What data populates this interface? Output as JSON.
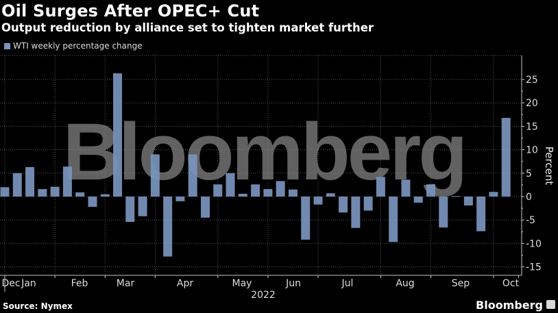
{
  "header": {
    "title": "Oil Surges After OPEC+ Cut",
    "subtitle": "Output reduction by alliance set to tighten market further"
  },
  "legend": {
    "label": "WTI weekly percentage change",
    "color": "#7b95be"
  },
  "footer": {
    "source": "Source: Nymex",
    "brand": "Bloomberg"
  },
  "watermark": "Bloomberg",
  "colors": {
    "bar": "#7b95be",
    "background": "#000000",
    "grid": "#5a5a5a",
    "axis": "#c8c8c8"
  },
  "chart_data": {
    "type": "bar",
    "title": "Oil Surges After OPEC+ Cut",
    "subtitle": "Output reduction by alliance set to tighten market further",
    "xlabel": "2022",
    "ylabel": "Percent",
    "ylim": [
      -16.5,
      28
    ],
    "yticks": [
      25,
      20,
      15,
      10,
      5,
      0,
      -5,
      -10,
      -15
    ],
    "grid": true,
    "legend_position": "top-left",
    "x_tick_labels": [
      "Dec",
      "Jan",
      "Feb",
      "Mar",
      "Apr",
      "May",
      "Jun",
      "Jul",
      "Aug",
      "Sep",
      "Oct"
    ],
    "x_tick_bar_index": [
      0,
      4,
      8,
      12,
      17,
      21,
      25,
      30,
      34,
      39,
      41
    ],
    "series": [
      {
        "name": "WTI weekly percentage change",
        "values": [
          2.0,
          5.0,
          6.3,
          1.6,
          2.1,
          6.4,
          0.9,
          -2.2,
          0.5,
          26.3,
          -5.4,
          -4.2,
          9.0,
          -12.8,
          -1.0,
          9.0,
          -4.5,
          2.6,
          5.0,
          0.6,
          2.6,
          1.6,
          3.3,
          1.5,
          -9.2,
          -1.7,
          0.7,
          -3.4,
          -6.7,
          -3.0,
          4.2,
          -9.7,
          3.6,
          -1.3,
          2.6,
          -6.6,
          0.1,
          -1.9,
          -7.4,
          1.0,
          16.8
        ]
      }
    ]
  }
}
